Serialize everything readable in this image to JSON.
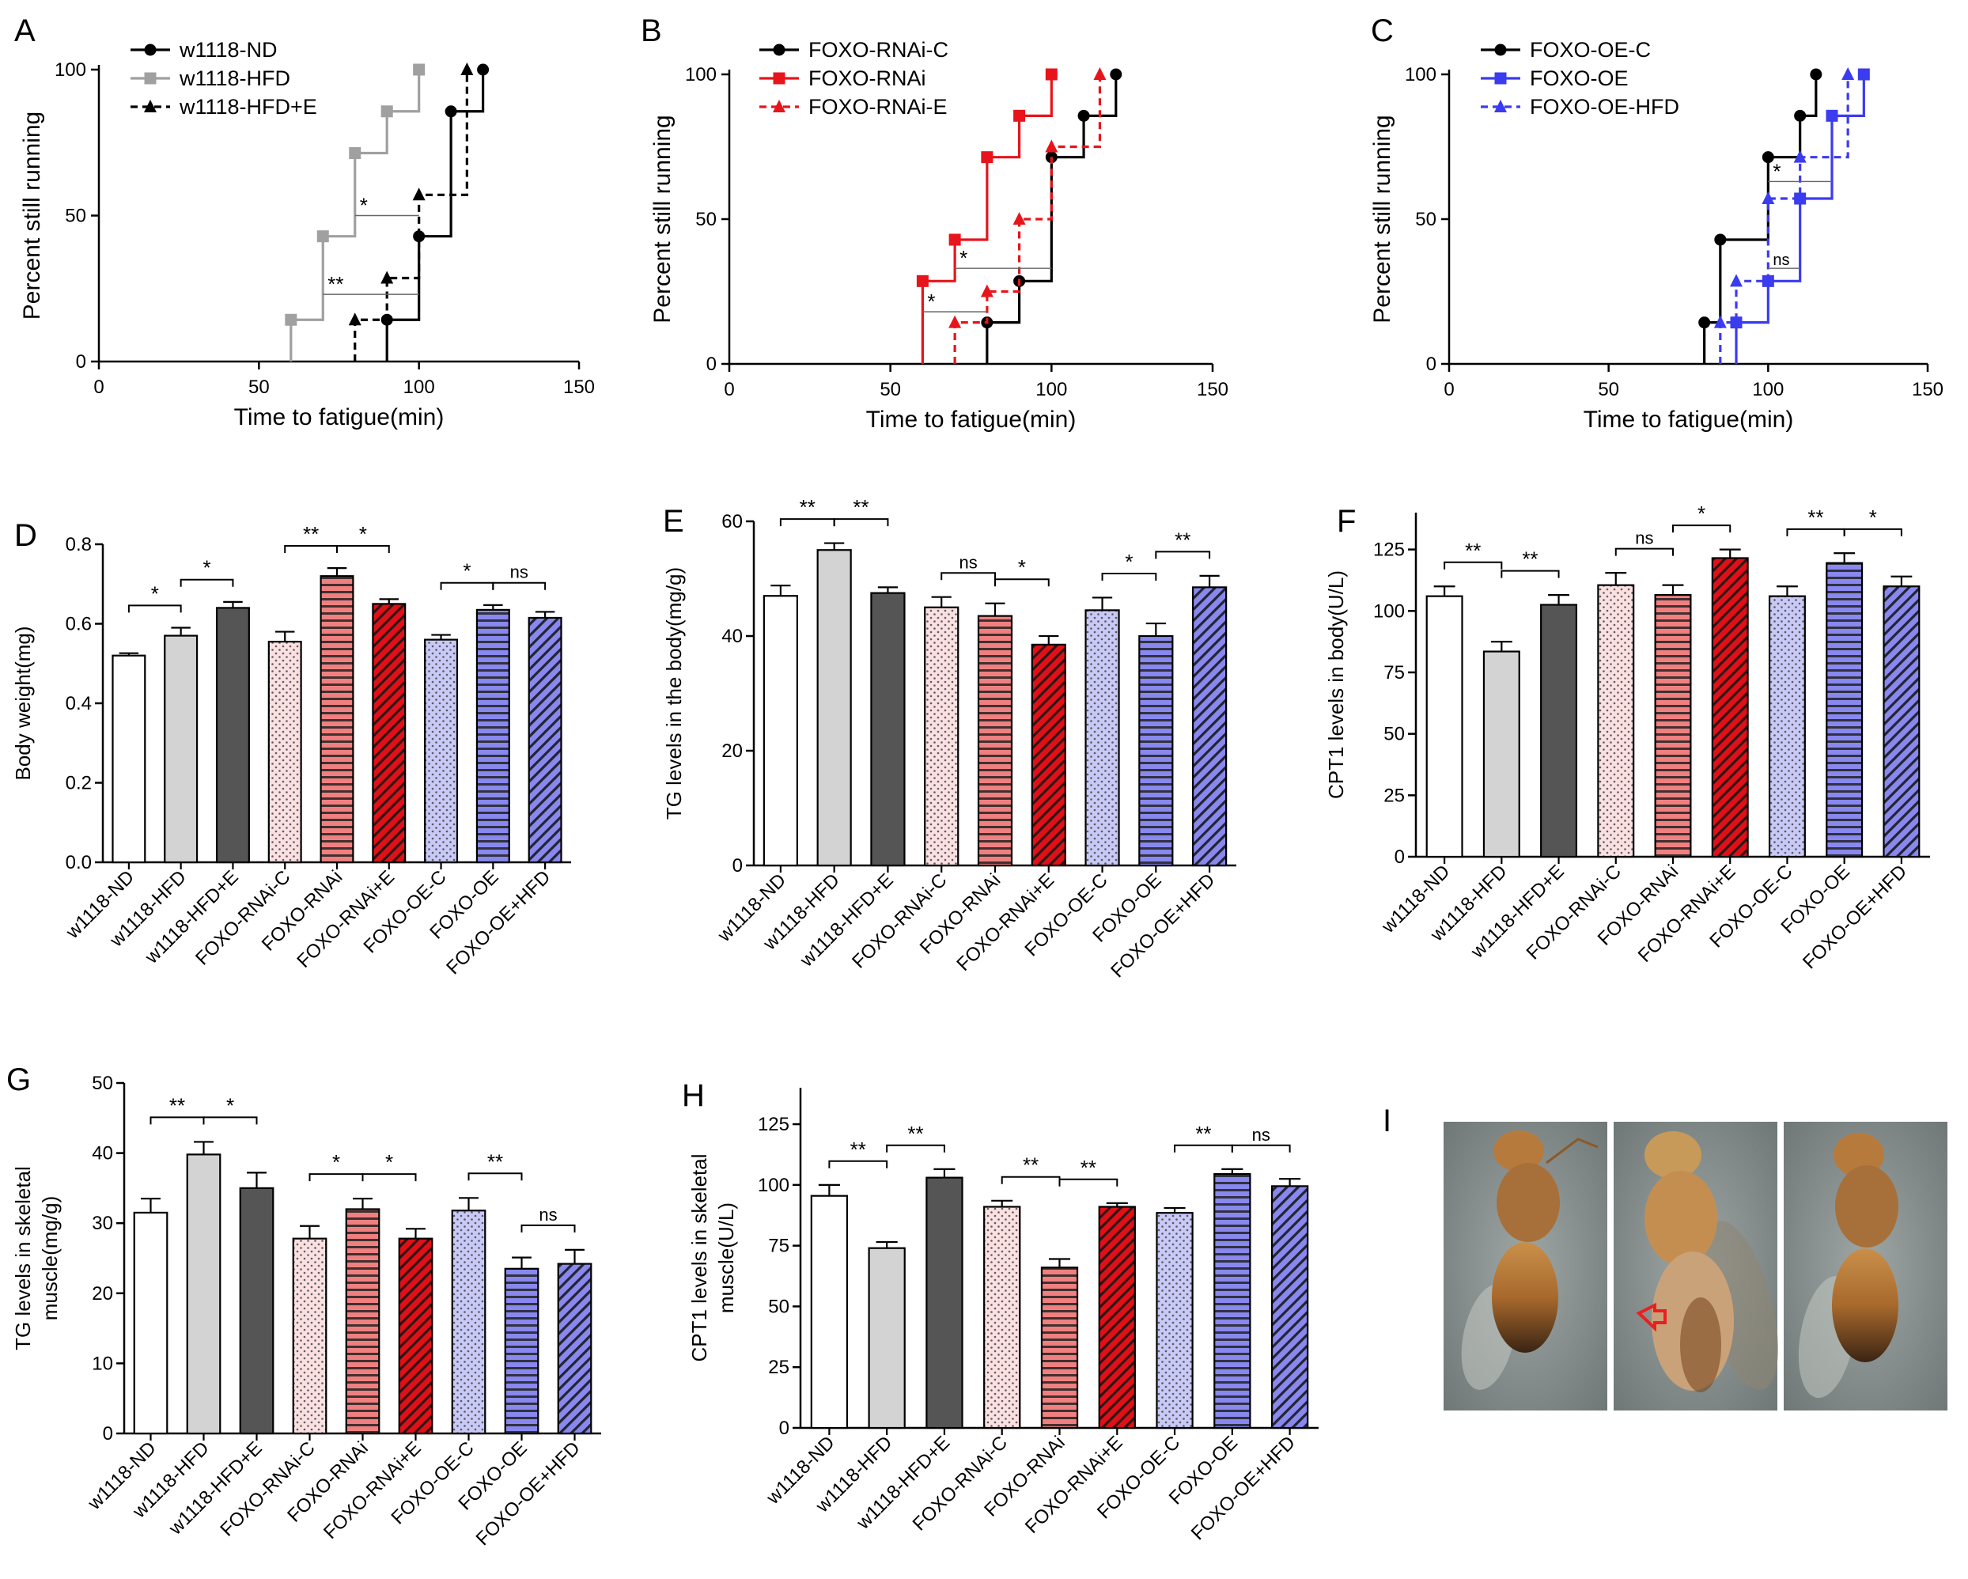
{
  "panel_letters": [
    "A",
    "B",
    "C",
    "D",
    "E",
    "F",
    "G",
    "H",
    "I"
  ],
  "chart_data": [
    {
      "panel": "A",
      "type": "line",
      "subtype": "kaplan-meier step",
      "xlabel": "Time to fatigue(min)",
      "ylabel": "Percent still running",
      "xlim": [
        0,
        150
      ],
      "ylim": [
        0,
        100
      ],
      "xticks": [
        "0",
        "50",
        "100",
        "150"
      ],
      "yticks": [
        "0",
        "50",
        "100"
      ],
      "legend_position": "top-left",
      "series": [
        {
          "name": "w1118-ND",
          "color": "#000000",
          "marker": "circle",
          "dashed": false,
          "points": [
            [
              90,
              14.3
            ],
            [
              100,
              42.9
            ],
            [
              110,
              85.7
            ],
            [
              120,
              100
            ]
          ]
        },
        {
          "name": "w1118-HFD",
          "color": "#a0a0a0",
          "marker": "square",
          "dashed": false,
          "points": [
            [
              60,
              14.3
            ],
            [
              70,
              42.9
            ],
            [
              80,
              71.4
            ],
            [
              90,
              85.7
            ],
            [
              100,
              100
            ]
          ]
        },
        {
          "name": "w1118-HFD+E",
          "color": "#000000",
          "marker": "triangle",
          "dashed": true,
          "points": [
            [
              80,
              14.3
            ],
            [
              90,
              28.6
            ],
            [
              100,
              57.1
            ],
            [
              115,
              100
            ]
          ]
        }
      ],
      "annotations": [
        {
          "text": "*",
          "x1": 80,
          "x2": 100,
          "y": 50
        },
        {
          "text": "**",
          "x1": 70,
          "x2": 100,
          "y": 23
        }
      ]
    },
    {
      "panel": "B",
      "type": "line",
      "subtype": "kaplan-meier step",
      "xlabel": "Time to fatigue(min)",
      "ylabel": "Percent still running",
      "xlim": [
        0,
        150
      ],
      "ylim": [
        0,
        100
      ],
      "xticks": [
        "0",
        "50",
        "100",
        "150"
      ],
      "yticks": [
        "0",
        "50",
        "100"
      ],
      "legend_position": "top-left",
      "series": [
        {
          "name": "FOXO-RNAi-C",
          "color": "#000000",
          "marker": "circle",
          "dashed": false,
          "points": [
            [
              80,
              14.3
            ],
            [
              90,
              28.6
            ],
            [
              100,
              71.4
            ],
            [
              110,
              85.7
            ],
            [
              120,
              100
            ]
          ]
        },
        {
          "name": "FOXO-RNAi",
          "color": "#e8141b",
          "marker": "square",
          "dashed": false,
          "points": [
            [
              60,
              28.6
            ],
            [
              70,
              42.9
            ],
            [
              80,
              71.4
            ],
            [
              90,
              85.7
            ],
            [
              100,
              100
            ]
          ]
        },
        {
          "name": "FOXO-RNAi-E",
          "color": "#e8141b",
          "marker": "triangle",
          "dashed": true,
          "points": [
            [
              70,
              14.3
            ],
            [
              80,
              25
            ],
            [
              90,
              50
            ],
            [
              100,
              75
            ],
            [
              115,
              100
            ]
          ]
        }
      ],
      "annotations": [
        {
          "text": "*",
          "x1": 70,
          "x2": 100,
          "y": 33
        },
        {
          "text": "*",
          "x1": 60,
          "x2": 80,
          "y": 18
        }
      ]
    },
    {
      "panel": "C",
      "type": "line",
      "subtype": "kaplan-meier step",
      "xlabel": "Time to fatigue(min)",
      "ylabel": "Percent still running",
      "xlim": [
        0,
        150
      ],
      "ylim": [
        0,
        100
      ],
      "xticks": [
        "0",
        "50",
        "100",
        "150"
      ],
      "yticks": [
        "0",
        "50",
        "100"
      ],
      "legend_position": "top-left",
      "series": [
        {
          "name": "FOXO-OE-C",
          "color": "#000000",
          "marker": "circle",
          "dashed": false,
          "points": [
            [
              80,
              14.3
            ],
            [
              85,
              42.9
            ],
            [
              100,
              71.4
            ],
            [
              110,
              85.7
            ],
            [
              115,
              100
            ]
          ]
        },
        {
          "name": "FOXO-OE",
          "color": "#3b3bf0",
          "marker": "square",
          "dashed": false,
          "points": [
            [
              90,
              14.3
            ],
            [
              100,
              28.6
            ],
            [
              110,
              57.1
            ],
            [
              120,
              85.7
            ],
            [
              130,
              100
            ]
          ]
        },
        {
          "name": "FOXO-OE-HFD",
          "color": "#3b3bf0",
          "marker": "triangle",
          "dashed": true,
          "points": [
            [
              85,
              14.3
            ],
            [
              90,
              28.6
            ],
            [
              100,
              57.1
            ],
            [
              110,
              71.4
            ],
            [
              125,
              100
            ]
          ]
        }
      ],
      "annotations": [
        {
          "text": "*",
          "x1": 100,
          "x2": 120,
          "y": 63
        },
        {
          "text": "ns",
          "x1": 100,
          "x2": 110,
          "y": 33
        }
      ]
    },
    {
      "panel": "D",
      "type": "bar",
      "ylabel": "Body weight(mg)",
      "ylim": [
        0,
        0.8
      ],
      "yticks": [
        "0.0",
        "0.2",
        "0.4",
        "0.6",
        "0.8"
      ],
      "categories": [
        "w1118-ND",
        "w1118-HFD",
        "w1118-HFD+E",
        "FOXO-RNAi-C",
        "FOXO-RNAi",
        "FOXO-RNAi+E",
        "FOXO-OE-C",
        "FOXO-OE",
        "FOXO-OE+HFD"
      ],
      "values": [
        0.52,
        0.57,
        0.64,
        0.555,
        0.72,
        0.65,
        0.56,
        0.635,
        0.615
      ],
      "errors": [
        0.006,
        0.02,
        0.015,
        0.025,
        0.02,
        0.012,
        0.012,
        0.012,
        0.015
      ],
      "significance": [
        {
          "from": 0,
          "to": 1,
          "label": "*"
        },
        {
          "from": 1,
          "to": 2,
          "label": "*"
        },
        {
          "from": 3,
          "to": 4,
          "label": "**"
        },
        {
          "from": 4,
          "to": 5,
          "label": "*"
        },
        {
          "from": 6,
          "to": 7,
          "label": "*"
        },
        {
          "from": 7,
          "to": 8,
          "label": "ns"
        }
      ]
    },
    {
      "panel": "E",
      "type": "bar",
      "ylabel": "TG levels in the body(mg/g)",
      "ylim": [
        0,
        60
      ],
      "yticks": [
        "0",
        "20",
        "40",
        "60"
      ],
      "categories": [
        "w1118-ND",
        "w1118-HFD",
        "w1118-HFD+E",
        "FOXO-RNAi-C",
        "FOXO-RNAi",
        "FOXO-RNAi+E",
        "FOXO-OE-C",
        "FOXO-OE",
        "FOXO-OE+HFD"
      ],
      "values": [
        47,
        55,
        47.5,
        45,
        43.5,
        38.5,
        44.5,
        40,
        48.5
      ],
      "errors": [
        1.8,
        1.2,
        1.0,
        1.8,
        2.2,
        1.5,
        2.2,
        2.2,
        2.0
      ],
      "significance": [
        {
          "from": 0,
          "to": 1,
          "label": "**"
        },
        {
          "from": 1,
          "to": 2,
          "label": "**"
        },
        {
          "from": 3,
          "to": 4,
          "label": "ns"
        },
        {
          "from": 4,
          "to": 5,
          "label": "*"
        },
        {
          "from": 6,
          "to": 7,
          "label": "*"
        },
        {
          "from": 7,
          "to": 8,
          "label": "**"
        }
      ]
    },
    {
      "panel": "F",
      "type": "bar",
      "ylabel": "CPT1 levels in body(U/L)",
      "ylim": [
        0,
        140
      ],
      "yticks": [
        "0",
        "25",
        "50",
        "75",
        "100",
        "125"
      ],
      "categories": [
        "w1118-ND",
        "w1118-HFD",
        "w1118-HFD+E",
        "FOXO-RNAi-C",
        "FOXO-RNAi",
        "FOXO-RNAi+E",
        "FOXO-OE-C",
        "FOXO-OE",
        "FOXO-OE+HFD"
      ],
      "values": [
        106,
        83.5,
        102.5,
        110.5,
        106.5,
        121.5,
        106,
        119.5,
        110
      ],
      "errors": [
        4,
        4,
        4,
        5,
        4,
        3.5,
        4,
        4,
        4
      ],
      "significance": [
        {
          "from": 0,
          "to": 1,
          "label": "**"
        },
        {
          "from": 1,
          "to": 2,
          "label": "**"
        },
        {
          "from": 3,
          "to": 4,
          "label": "ns"
        },
        {
          "from": 4,
          "to": 5,
          "label": "*"
        },
        {
          "from": 6,
          "to": 7,
          "label": "**"
        },
        {
          "from": 7,
          "to": 8,
          "label": "*"
        }
      ]
    },
    {
      "panel": "G",
      "type": "bar",
      "ylabel": "TG levels in skeletal muscle(mg/g)",
      "ylim": [
        0,
        50
      ],
      "yticks": [
        "0",
        "10",
        "20",
        "30",
        "40",
        "50"
      ],
      "categories": [
        "w1118-ND",
        "w1118-HFD",
        "w1118-HFD+E",
        "FOXO-RNAi-C",
        "FOXO-RNAi",
        "FOXO-RNAi+E",
        "FOXO-OE-C",
        "FOXO-OE",
        "FOXO-OE+HFD"
      ],
      "values": [
        31.5,
        39.8,
        35,
        27.8,
        32,
        27.8,
        31.8,
        23.5,
        24.2
      ],
      "errors": [
        2.0,
        1.8,
        2.2,
        1.8,
        1.5,
        1.4,
        1.8,
        1.6,
        2.0
      ],
      "significance": [
        {
          "from": 0,
          "to": 1,
          "label": "**"
        },
        {
          "from": 1,
          "to": 2,
          "label": "*"
        },
        {
          "from": 3,
          "to": 4,
          "label": "*"
        },
        {
          "from": 4,
          "to": 5,
          "label": "*"
        },
        {
          "from": 6,
          "to": 7,
          "label": "**"
        },
        {
          "from": 7,
          "to": 8,
          "label": "ns"
        }
      ]
    },
    {
      "panel": "H",
      "type": "bar",
      "ylabel": "CPT1 levels in skeletal muscle(U/L)",
      "ylim": [
        0,
        140
      ],
      "yticks": [
        "0",
        "25",
        "50",
        "75",
        "100",
        "125"
      ],
      "categories": [
        "w1118-ND",
        "w1118-HFD",
        "w1118-HFD+E",
        "FOXO-RNAi-C",
        "FOXO-RNAi",
        "FOXO-RNAi+E",
        "FOXO-OE-C",
        "FOXO-OE",
        "FOXO-OE+HFD"
      ],
      "values": [
        95.5,
        74,
        103,
        91,
        66,
        91,
        88.5,
        104.5,
        99.5
      ],
      "errors": [
        4.5,
        2.5,
        3.5,
        2.5,
        3.5,
        1.5,
        2.0,
        2.0,
        3.0
      ],
      "significance": [
        {
          "from": 0,
          "to": 1,
          "label": "**"
        },
        {
          "from": 1,
          "to": 2,
          "label": "**"
        },
        {
          "from": 3,
          "to": 4,
          "label": "**"
        },
        {
          "from": 4,
          "to": 5,
          "label": "**"
        },
        {
          "from": 6,
          "to": 7,
          "label": "**"
        },
        {
          "from": 7,
          "to": 8,
          "label": "ns"
        }
      ]
    }
  ],
  "bar_styles": [
    {
      "fill": "#ffffff",
      "pattern": "none"
    },
    {
      "fill": "#d3d3d3",
      "pattern": "none"
    },
    {
      "fill": "#555555",
      "pattern": "none"
    },
    {
      "fill": "#fbe0e2",
      "pattern": "dots"
    },
    {
      "fill": "#f08080",
      "pattern": "hlines"
    },
    {
      "fill": "#e01018",
      "pattern": "diag"
    },
    {
      "fill": "#c9c9f7",
      "pattern": "dots"
    },
    {
      "fill": "#8888ee",
      "pattern": "hlines"
    },
    {
      "fill": "#8888ee",
      "pattern": "diag"
    }
  ],
  "photo_panel": {
    "label": "I",
    "images": [
      "fly-photo-1",
      "fly-photo-2",
      "fly-photo-3"
    ],
    "arrow_color": "#e82020"
  }
}
